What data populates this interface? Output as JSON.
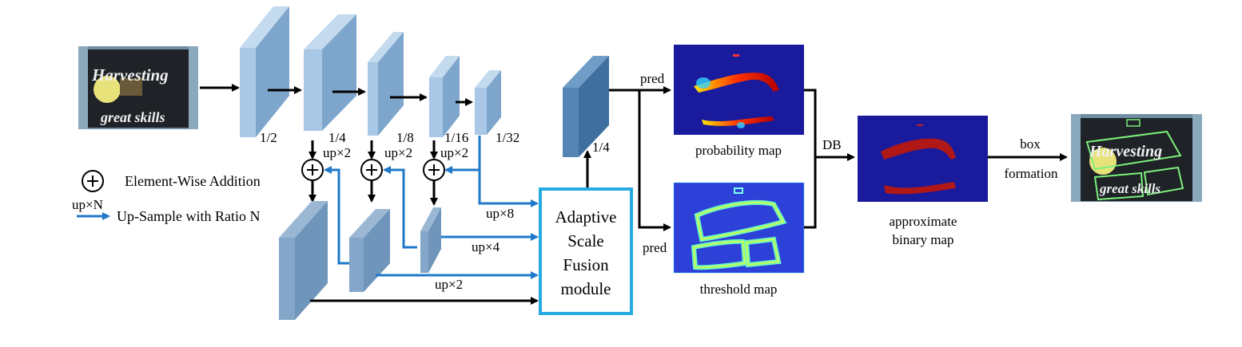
{
  "backbone": {
    "scales": [
      "1/2",
      "1/4",
      "1/8",
      "1/16",
      "1/32"
    ],
    "upsample_labels": [
      "up×2",
      "up×2",
      "up×2"
    ]
  },
  "fusion": {
    "inputs": [
      "up×8",
      "up×4",
      "up×2"
    ],
    "module_lines": [
      "Adaptive",
      "Scale",
      "Fusion",
      "module"
    ]
  },
  "fused_scale": "1/4",
  "heads": {
    "pred_top": "pred",
    "pred_bottom": "pred",
    "probability_map": "probability map",
    "threshold_map": "threshold map"
  },
  "db": {
    "label": "DB",
    "approx_line1": "approximate",
    "approx_line2": "binary map"
  },
  "box": {
    "line1": "box",
    "line2": "formation"
  },
  "legend": {
    "addition_label": "Element-Wise Addition",
    "upsample_symbol": "up×N",
    "upsample_label": "Up-Sample with Ratio N"
  },
  "input_image_text": [
    "Harvesting",
    "great skills"
  ],
  "colors": {
    "feature_front": "#a8c8e6",
    "feature_side": "#7ea6cc",
    "up_arrow": "#1f78c8",
    "module_border": "#27aae1",
    "map_bg": "#1a1a9c"
  }
}
